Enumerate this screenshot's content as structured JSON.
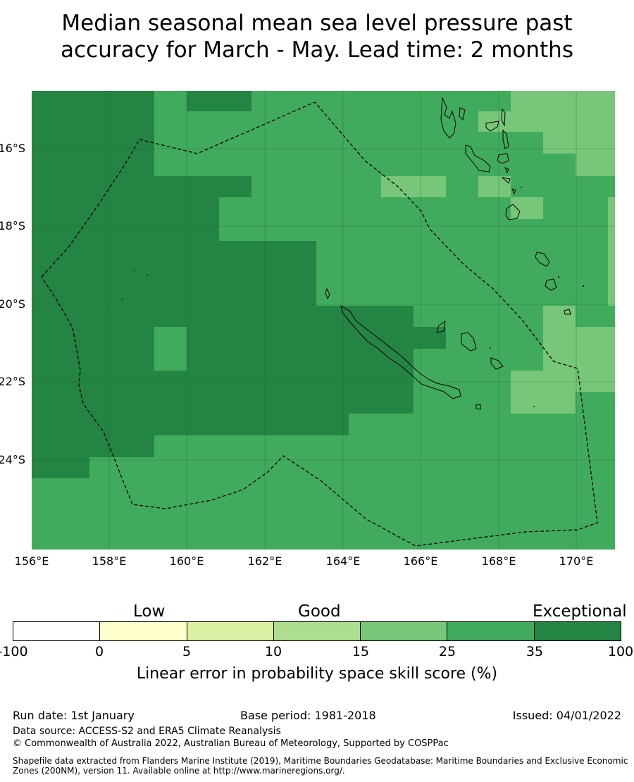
{
  "title": {
    "line1": "Median seasonal mean sea level pressure past",
    "line2": "accuracy for March - May. Lead time: 2 months"
  },
  "map": {
    "lat_labels": [
      "16°S",
      "18°S",
      "20°S",
      "22°S",
      "24°S"
    ],
    "lon_labels": [
      "156°E",
      "158°E",
      "160°E",
      "162°E",
      "164°E",
      "166°E",
      "168°E",
      "170°E"
    ],
    "lon_range": [
      156,
      171
    ],
    "lat_range": [
      -26.5,
      -14.5
    ],
    "boundary_style": "dashed",
    "colors": {
      "exceptional": "#238443",
      "good_high": "#41ab5d",
      "good_mid": "#78c679",
      "land_outline": "#000000"
    }
  },
  "legend": {
    "categories": [
      "Low",
      "Good",
      "Exceptional"
    ],
    "ticks": [
      "-100",
      "0",
      "5",
      "10",
      "15",
      "25",
      "35",
      "100"
    ],
    "colors": [
      "#ffffff",
      "#ffffcc",
      "#d9f0a3",
      "#addd8e",
      "#78c679",
      "#41ab5d",
      "#238443"
    ],
    "title": "Linear error in probability space skill score (%)"
  },
  "footer": {
    "run_date": "Run date: 1st January",
    "base_period": "Base period: 1981-2018",
    "issued": "Issued: 04/01/2022",
    "data_source": "Data source: ACCESS-S2 and ERA5 Climate Reanalysis",
    "copyright": "© Commonwealth of Australia 2022, Australian Bureau of Meteorology, Supported by COSPPac",
    "shapefile": "Shapefile data extracted from Flanders Marine Institute (2019), Maritime Boundaries Geodatabase: Maritime Boundaries and Exclusive Economic Zones (200NM), version 11. Available online at http://www.marineregions.org/."
  }
}
